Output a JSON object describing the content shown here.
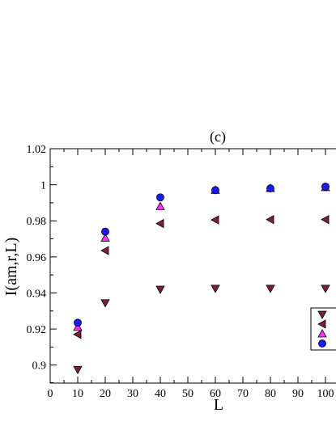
{
  "chart_data": {
    "type": "scatter",
    "title": "(c)",
    "xlabel": "L",
    "ylabel": "I(am,r,L)",
    "xlim": [
      0,
      100
    ],
    "ylim": [
      0.89,
      1.02
    ],
    "xticks": [
      0,
      10,
      20,
      30,
      40,
      50,
      60,
      70,
      80,
      90,
      100
    ],
    "yticks": [
      0.9,
      0.92,
      0.94,
      0.96,
      0.98,
      1,
      1.02
    ],
    "ytick_labels": [
      "0.9",
      "0.92",
      "0.94",
      "0.96",
      "0.98",
      "1",
      "1.02"
    ],
    "grid": false,
    "legend_position": "right",
    "series": [
      {
        "marker": "triangle-down",
        "color": "#7a1f3d",
        "x": [
          10,
          20,
          40,
          60,
          80,
          100
        ],
        "y": [
          0.8975,
          0.9345,
          0.942,
          0.9425,
          0.9425,
          0.9425
        ]
      },
      {
        "marker": "triangle-left",
        "color": "#7a1f3d",
        "x": [
          10,
          20,
          40,
          60,
          80,
          100
        ],
        "y": [
          0.917,
          0.9635,
          0.9785,
          0.9805,
          0.9807,
          0.9807
        ]
      },
      {
        "marker": "triangle-up",
        "color": "#ff33ff",
        "x": [
          10,
          20,
          40,
          60,
          80,
          100
        ],
        "y": [
          0.921,
          0.9705,
          0.988,
          0.997,
          0.998,
          0.9985
        ]
      },
      {
        "marker": "circle",
        "color": "#1a1aff",
        "x": [
          10,
          20,
          40,
          60,
          80,
          100
        ],
        "y": [
          0.9235,
          0.974,
          0.993,
          0.997,
          0.998,
          0.999
        ]
      }
    ]
  }
}
